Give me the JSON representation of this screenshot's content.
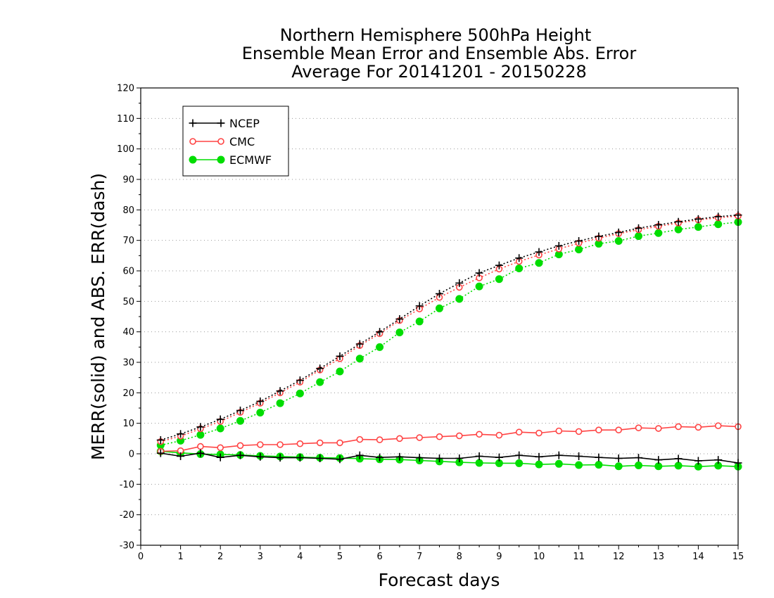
{
  "chart_data": {
    "type": "line",
    "title_lines": [
      "Northern Hemisphere 500hPa Height",
      "Ensemble Mean Error and Ensemble Abs. Error",
      "Average For 20141201 - 20150228"
    ],
    "xlabel": "Forecast days",
    "ylabel": "MERR(solid) and ABS. ERR(dash)",
    "xlim": [
      0,
      15
    ],
    "ylim": [
      -30,
      120
    ],
    "x_ticks": [
      "0",
      "1",
      "2",
      "3",
      "4",
      "5",
      "6",
      "7",
      "8",
      "9",
      "10",
      "11",
      "12",
      "13",
      "14",
      "15"
    ],
    "y_ticks": [
      "-30",
      "-20",
      "-10",
      "0",
      "10",
      "20",
      "30",
      "40",
      "50",
      "60",
      "70",
      "80",
      "90",
      "100",
      "110",
      "120"
    ],
    "grid": "horizontal-dotted",
    "legend_position": "top-left",
    "x": [
      0.5,
      1,
      1.5,
      2,
      2.5,
      3,
      3.5,
      4,
      4.5,
      5,
      5.5,
      6,
      6.5,
      7,
      7.5,
      8,
      8.5,
      9,
      9.5,
      10,
      10.5,
      11,
      11.5,
      12,
      12.5,
      13,
      13.5,
      14,
      14.5,
      15
    ],
    "series": [
      {
        "name": "NCEP",
        "color": "#000000",
        "marker": "plus",
        "merr": [
          0.2,
          -0.8,
          0.2,
          -1.2,
          -0.5,
          -1.0,
          -1.3,
          -1.3,
          -1.5,
          -1.8,
          -0.5,
          -1.2,
          -1.0,
          -1.3,
          -1.5,
          -1.5,
          -0.8,
          -1.2,
          -0.5,
          -1.0,
          -0.5,
          -0.8,
          -1.2,
          -1.5,
          -1.3,
          -2.0,
          -1.6,
          -2.3,
          -2.0,
          -3.0
        ],
        "abs_err": [
          4.5,
          6.5,
          8.8,
          11.3,
          14.2,
          17.2,
          20.6,
          24.1,
          28.0,
          32.0,
          36.0,
          40.0,
          44.2,
          48.5,
          52.5,
          56.0,
          59.3,
          61.8,
          64.2,
          66.2,
          68.2,
          69.8,
          71.3,
          72.6,
          74.0,
          75.1,
          76.1,
          77.0,
          77.8,
          78.3
        ]
      },
      {
        "name": "CMC",
        "color": "#ff4444",
        "marker": "open-circle",
        "merr": [
          0.8,
          1.0,
          2.4,
          2.0,
          2.7,
          3.0,
          3.0,
          3.3,
          3.6,
          3.6,
          4.7,
          4.6,
          5.0,
          5.3,
          5.6,
          5.9,
          6.4,
          6.1,
          7.1,
          6.8,
          7.5,
          7.3,
          7.8,
          7.8,
          8.5,
          8.3,
          8.9,
          8.7,
          9.2,
          8.9
        ],
        "abs_err": [
          4.0,
          5.8,
          8.2,
          10.6,
          13.6,
          16.6,
          20.0,
          23.5,
          27.5,
          31.2,
          35.5,
          39.4,
          43.7,
          47.5,
          51.3,
          54.6,
          57.7,
          60.6,
          63.1,
          65.2,
          67.2,
          69.1,
          70.7,
          72.2,
          73.5,
          74.6,
          75.7,
          76.7,
          77.4,
          78.0
        ]
      },
      {
        "name": "ECMWF",
        "color": "#00dd00",
        "marker": "filled-circle",
        "merr": [
          0.8,
          0.3,
          -0.1,
          -0.2,
          -0.4,
          -0.7,
          -0.9,
          -1.1,
          -1.3,
          -1.4,
          -1.6,
          -1.8,
          -1.9,
          -2.2,
          -2.5,
          -2.8,
          -3.0,
          -3.1,
          -3.1,
          -3.5,
          -3.3,
          -3.7,
          -3.6,
          -4.1,
          -3.8,
          -4.1,
          -3.9,
          -4.2,
          -3.9,
          -4.2
        ],
        "abs_err": [
          2.8,
          4.3,
          6.2,
          8.3,
          10.8,
          13.5,
          16.6,
          19.8,
          23.5,
          27.0,
          31.2,
          35.0,
          39.8,
          43.4,
          47.7,
          50.8,
          54.9,
          57.3,
          60.8,
          62.6,
          65.4,
          67.0,
          68.9,
          69.8,
          71.4,
          72.4,
          73.6,
          74.4,
          75.3,
          76.0
        ]
      }
    ]
  }
}
